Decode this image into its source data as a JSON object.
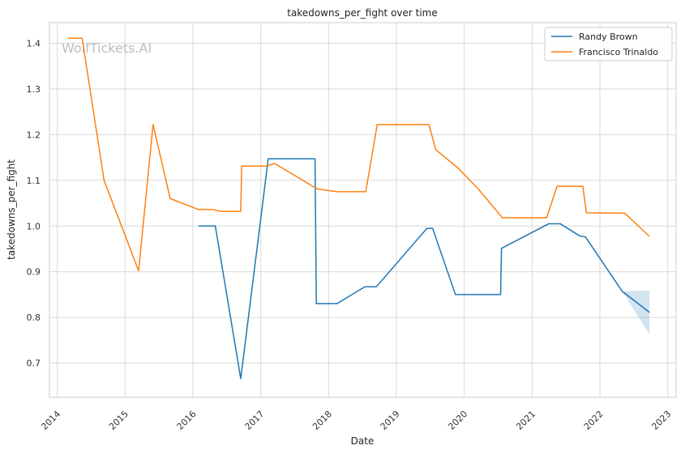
{
  "watermark": "WolfTickets.AI",
  "chart_data": {
    "type": "line",
    "title": "takedowns_per_fight over time",
    "xlabel": "Date",
    "ylabel": "takedowns_per_fight",
    "x_ticks": [
      "2014",
      "2015",
      "2016",
      "2017",
      "2018",
      "2019",
      "2020",
      "2021",
      "2022",
      "2023"
    ],
    "y_ticks": [
      "0.7",
      "0.8",
      "0.9",
      "1.0",
      "1.1",
      "1.2",
      "1.3",
      "1.4"
    ],
    "xlim": [
      "2013-11-20",
      "2023-02-15"
    ],
    "ylim": [
      0.625,
      1.445
    ],
    "grid": true,
    "legend_position": "top-right",
    "series": [
      {
        "name": "Randy Brown",
        "color": "#1f77b4",
        "points": [
          [
            "2016-02-01",
            1.0
          ],
          [
            "2016-05-01",
            1.0
          ],
          [
            "2016-09-15",
            0.666
          ],
          [
            "2017-02-10",
            1.147
          ],
          [
            "2017-10-20",
            1.147
          ],
          [
            "2017-10-27",
            0.83
          ],
          [
            "2018-02-15",
            0.83
          ],
          [
            "2018-07-15",
            0.867
          ],
          [
            "2018-09-15",
            0.867
          ],
          [
            "2019-06-15",
            0.995
          ],
          [
            "2019-07-15",
            0.995
          ],
          [
            "2019-11-15",
            0.85
          ],
          [
            "2020-07-15",
            0.85
          ],
          [
            "2020-07-20",
            0.951
          ],
          [
            "2021-04-01",
            1.005
          ],
          [
            "2021-06-01",
            1.005
          ],
          [
            "2021-09-15",
            0.978
          ],
          [
            "2021-10-15",
            0.976
          ],
          [
            "2022-05-01",
            0.857
          ],
          [
            "2022-09-25",
            0.811
          ]
        ],
        "band": [
          [
            "2022-05-01",
            0.857,
            0.857
          ],
          [
            "2022-09-25",
            0.763,
            0.859
          ]
        ]
      },
      {
        "name": "Francisco Trinaldo",
        "color": "#ff7f0e",
        "points": [
          [
            "2014-03-01",
            1.411
          ],
          [
            "2014-05-15",
            1.411
          ],
          [
            "2014-09-10",
            1.1
          ],
          [
            "2015-03-15",
            0.902
          ],
          [
            "2015-06-01",
            1.222
          ],
          [
            "2015-09-01",
            1.06
          ],
          [
            "2016-02-01",
            1.036
          ],
          [
            "2016-04-15",
            1.036
          ],
          [
            "2016-06-01",
            1.032
          ],
          [
            "2016-09-15",
            1.032
          ],
          [
            "2016-09-20",
            1.131
          ],
          [
            "2017-02-01",
            1.131
          ],
          [
            "2017-03-15",
            1.137
          ],
          [
            "2017-11-01",
            1.081
          ],
          [
            "2018-02-15",
            1.075
          ],
          [
            "2018-07-20",
            1.075
          ],
          [
            "2018-09-20",
            1.222
          ],
          [
            "2019-06-25",
            1.222
          ],
          [
            "2019-08-01",
            1.167
          ],
          [
            "2019-12-01",
            1.126
          ],
          [
            "2020-03-15",
            1.082
          ],
          [
            "2020-07-25",
            1.018
          ],
          [
            "2021-03-20",
            1.018
          ],
          [
            "2021-05-15",
            1.087
          ],
          [
            "2021-10-01",
            1.087
          ],
          [
            "2021-10-20",
            1.029
          ],
          [
            "2022-05-15",
            1.028
          ],
          [
            "2022-09-25",
            0.977
          ]
        ]
      }
    ]
  }
}
